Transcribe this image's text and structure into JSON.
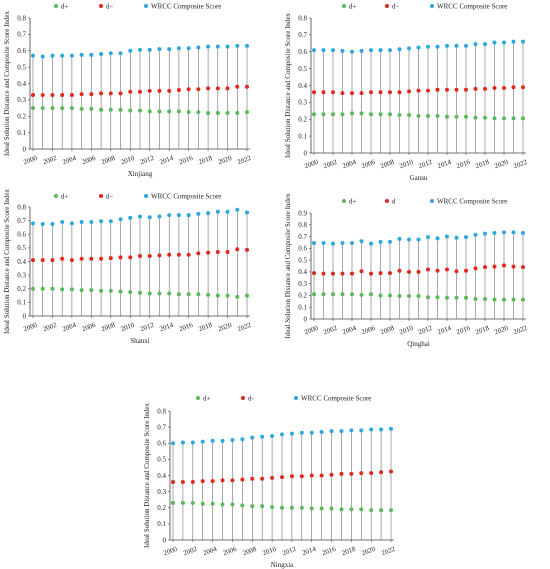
{
  "chart_data": [
    {
      "type": "scatter",
      "xlabel": "Xinjiang",
      "ylabel": "Ideal Solution Distance and Composite Score Index",
      "ylim": [
        0,
        0.8
      ],
      "yticks": [
        "0",
        "0.1",
        "0.2",
        "0.3",
        "0.4",
        "0.5",
        "0.6",
        "0.7",
        "0.8"
      ],
      "xticks": [
        "2000",
        "2002",
        "2004",
        "2006",
        "2008",
        "2010",
        "2012",
        "2014",
        "2016",
        "2018",
        "2020",
        "2022"
      ],
      "x": [
        2000,
        2001,
        2002,
        2003,
        2004,
        2005,
        2006,
        2007,
        2008,
        2009,
        2010,
        2011,
        2012,
        2013,
        2014,
        2015,
        2016,
        2017,
        2018,
        2019,
        2020,
        2021,
        2022
      ],
      "series": [
        {
          "name": "d+",
          "values": [
            0.25,
            0.25,
            0.25,
            0.25,
            0.25,
            0.245,
            0.245,
            0.24,
            0.24,
            0.24,
            0.235,
            0.235,
            0.23,
            0.23,
            0.23,
            0.23,
            0.225,
            0.225,
            0.22,
            0.22,
            0.22,
            0.22,
            0.225
          ]
        },
        {
          "name": "d−",
          "values": [
            0.33,
            0.33,
            0.33,
            0.33,
            0.33,
            0.335,
            0.335,
            0.34,
            0.34,
            0.34,
            0.35,
            0.35,
            0.355,
            0.355,
            0.355,
            0.36,
            0.365,
            0.365,
            0.37,
            0.37,
            0.37,
            0.38,
            0.38
          ]
        },
        {
          "name": "WRCC Composite Score",
          "values": [
            0.57,
            0.565,
            0.57,
            0.57,
            0.57,
            0.575,
            0.575,
            0.58,
            0.585,
            0.585,
            0.6,
            0.605,
            0.605,
            0.61,
            0.61,
            0.615,
            0.615,
            0.62,
            0.625,
            0.625,
            0.625,
            0.63,
            0.63
          ]
        }
      ]
    },
    {
      "type": "scatter",
      "xlabel": "Gansu",
      "ylabel": "Ideal Solution Distance and Composite Score Index",
      "ylim": [
        0,
        0.8
      ],
      "yticks": [
        "0",
        "0.1",
        "0.2",
        "0.3",
        "0.4",
        "0.5",
        "0.6",
        "0.7",
        "0.8"
      ],
      "xticks": [
        "2000",
        "2002",
        "2004",
        "2006",
        "2008",
        "2010",
        "2012",
        "2014",
        "2016",
        "2018",
        "2020",
        "2022"
      ],
      "x": [
        2000,
        2001,
        2002,
        2003,
        2004,
        2005,
        2006,
        2007,
        2008,
        2009,
        2010,
        2011,
        2012,
        2013,
        2014,
        2015,
        2016,
        2017,
        2018,
        2019,
        2020,
        2021,
        2022
      ],
      "series": [
        {
          "name": "d+",
          "values": [
            0.23,
            0.23,
            0.23,
            0.23,
            0.235,
            0.235,
            0.23,
            0.23,
            0.23,
            0.225,
            0.225,
            0.22,
            0.22,
            0.22,
            0.215,
            0.215,
            0.215,
            0.21,
            0.21,
            0.205,
            0.205,
            0.205,
            0.205
          ]
        },
        {
          "name": "d−",
          "values": [
            0.36,
            0.36,
            0.36,
            0.355,
            0.355,
            0.355,
            0.36,
            0.36,
            0.36,
            0.36,
            0.365,
            0.37,
            0.37,
            0.375,
            0.375,
            0.375,
            0.375,
            0.38,
            0.38,
            0.385,
            0.385,
            0.39,
            0.39
          ]
        },
        {
          "name": "WRCC Composite Score",
          "values": [
            0.61,
            0.61,
            0.61,
            0.605,
            0.6,
            0.605,
            0.61,
            0.61,
            0.61,
            0.615,
            0.62,
            0.625,
            0.63,
            0.63,
            0.635,
            0.635,
            0.635,
            0.645,
            0.645,
            0.655,
            0.655,
            0.66,
            0.66
          ]
        }
      ]
    },
    {
      "type": "scatter",
      "xlabel": "Shanxi",
      "ylabel": "Ideal Solution Distance and Composite Score Index",
      "ylim": [
        0,
        0.8
      ],
      "yticks": [
        "0",
        "0.1",
        "0.2",
        "0.3",
        "0.4",
        "0.5",
        "0.6",
        "0.7",
        "0.8"
      ],
      "xticks": [
        "2000",
        "2002",
        "2004",
        "2006",
        "2008",
        "2010",
        "2012",
        "2014",
        "2016",
        "2018",
        "2020",
        "2022"
      ],
      "x": [
        2000,
        2001,
        2002,
        2003,
        2004,
        2005,
        2006,
        2007,
        2008,
        2009,
        2010,
        2011,
        2012,
        2013,
        2014,
        2015,
        2016,
        2017,
        2018,
        2019,
        2020,
        2021,
        2022
      ],
      "series": [
        {
          "name": "d+",
          "values": [
            0.2,
            0.2,
            0.2,
            0.195,
            0.195,
            0.19,
            0.19,
            0.185,
            0.185,
            0.18,
            0.175,
            0.17,
            0.165,
            0.165,
            0.165,
            0.16,
            0.16,
            0.16,
            0.155,
            0.15,
            0.15,
            0.14,
            0.15
          ]
        },
        {
          "name": "d−",
          "values": [
            0.41,
            0.41,
            0.41,
            0.42,
            0.41,
            0.42,
            0.42,
            0.42,
            0.425,
            0.43,
            0.43,
            0.44,
            0.44,
            0.445,
            0.45,
            0.45,
            0.45,
            0.46,
            0.465,
            0.47,
            0.47,
            0.49,
            0.485
          ]
        },
        {
          "name": "WRCC Composite Score",
          "values": [
            0.68,
            0.675,
            0.675,
            0.69,
            0.68,
            0.69,
            0.69,
            0.695,
            0.695,
            0.71,
            0.72,
            0.73,
            0.725,
            0.73,
            0.74,
            0.74,
            0.74,
            0.75,
            0.755,
            0.765,
            0.765,
            0.78,
            0.76
          ]
        }
      ]
    },
    {
      "type": "scatter",
      "xlabel": "Qinghai",
      "ylabel": "Ideal Solution Distance and Composite Score Index",
      "ylim": [
        0,
        0.9
      ],
      "yticks": [
        "0",
        "0.1",
        "0.2",
        "0.3",
        "0.4",
        "0.5",
        "0.6",
        "0.7",
        "0.8",
        "0.9"
      ],
      "xticks": [
        "2000",
        "2002",
        "2004",
        "2006",
        "2008",
        "2010",
        "2012",
        "2014",
        "2016",
        "2018",
        "2020",
        "2022"
      ],
      "x": [
        2000,
        2001,
        2002,
        2003,
        2004,
        2005,
        2006,
        2007,
        2008,
        2009,
        2010,
        2011,
        2012,
        2013,
        2014,
        2015,
        2016,
        2017,
        2018,
        2019,
        2020,
        2021,
        2022
      ],
      "series": [
        {
          "name": "d+",
          "values": [
            0.21,
            0.21,
            0.21,
            0.21,
            0.21,
            0.205,
            0.21,
            0.2,
            0.2,
            0.195,
            0.195,
            0.195,
            0.185,
            0.185,
            0.18,
            0.18,
            0.18,
            0.17,
            0.17,
            0.165,
            0.165,
            0.165,
            0.165
          ]
        },
        {
          "name": "d",
          "values": [
            0.39,
            0.385,
            0.385,
            0.385,
            0.385,
            0.405,
            0.385,
            0.39,
            0.39,
            0.41,
            0.4,
            0.4,
            0.42,
            0.41,
            0.42,
            0.405,
            0.41,
            0.43,
            0.44,
            0.445,
            0.455,
            0.445,
            0.44
          ]
        },
        {
          "name": "WRCC Composite Score",
          "values": [
            0.645,
            0.645,
            0.64,
            0.645,
            0.645,
            0.66,
            0.64,
            0.655,
            0.655,
            0.68,
            0.675,
            0.675,
            0.695,
            0.685,
            0.7,
            0.69,
            0.695,
            0.715,
            0.725,
            0.73,
            0.735,
            0.735,
            0.73
          ]
        }
      ]
    },
    {
      "type": "scatter",
      "xlabel": "Ningxia",
      "ylabel": "Ideal Solution Distance and Composite Score Index",
      "ylim": [
        0,
        0.8
      ],
      "yticks": [
        "0",
        "0.1",
        "0.2",
        "0.3",
        "0.4",
        "0.5",
        "0.6",
        "0.7",
        "0.8"
      ],
      "xticks": [
        "2000",
        "2002",
        "2004",
        "2006",
        "2008",
        "2010",
        "2012",
        "2014",
        "2016",
        "2018",
        "2020",
        "2022"
      ],
      "x": [
        2000,
        2001,
        2002,
        2003,
        2004,
        2005,
        2006,
        2007,
        2008,
        2009,
        2010,
        2011,
        2012,
        2013,
        2014,
        2015,
        2016,
        2017,
        2018,
        2019,
        2020,
        2021,
        2022
      ],
      "series": [
        {
          "name": "d+",
          "values": [
            0.23,
            0.23,
            0.23,
            0.225,
            0.225,
            0.22,
            0.22,
            0.215,
            0.21,
            0.21,
            0.205,
            0.2,
            0.2,
            0.2,
            0.195,
            0.195,
            0.195,
            0.19,
            0.19,
            0.19,
            0.185,
            0.185,
            0.185
          ]
        },
        {
          "name": "d-",
          "values": [
            0.36,
            0.36,
            0.36,
            0.365,
            0.365,
            0.37,
            0.37,
            0.375,
            0.38,
            0.38,
            0.385,
            0.39,
            0.395,
            0.395,
            0.4,
            0.4,
            0.405,
            0.41,
            0.41,
            0.415,
            0.415,
            0.42,
            0.425
          ]
        },
        {
          "name": "WRCC Composite Score",
          "values": [
            0.6,
            0.605,
            0.605,
            0.61,
            0.615,
            0.615,
            0.62,
            0.625,
            0.635,
            0.64,
            0.645,
            0.655,
            0.66,
            0.665,
            0.665,
            0.67,
            0.675,
            0.675,
            0.68,
            0.68,
            0.685,
            0.685,
            0.69
          ]
        }
      ]
    }
  ],
  "colors": {
    "d_plus": "#5cb85c",
    "d_minus": "#e02a1f",
    "composite": "#2fa8dc",
    "drop_line": "#555555"
  }
}
